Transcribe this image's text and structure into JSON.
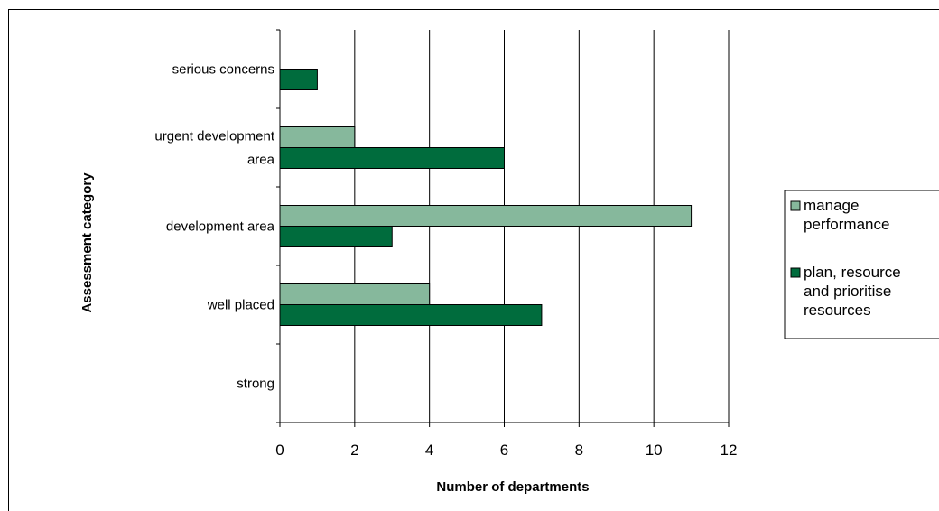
{
  "chart_data": {
    "type": "bar",
    "orientation": "horizontal",
    "categories": [
      "serious concerns",
      "urgent development area",
      "development area",
      "well placed",
      "strong"
    ],
    "category_lines": [
      [
        "serious concerns"
      ],
      [
        "urgent development",
        "area"
      ],
      [
        "development area"
      ],
      [
        "well placed"
      ],
      [
        "strong"
      ]
    ],
    "series": [
      {
        "name": "manage performance",
        "legend_lines": [
          "manage",
          "performance"
        ],
        "color": "#86b89c",
        "values": [
          0,
          2,
          11,
          4,
          0
        ]
      },
      {
        "name": "plan, resource and prioritise resources",
        "legend_lines": [
          "plan, resource",
          "and prioritise",
          "resources"
        ],
        "color": "#006c3d",
        "values": [
          1,
          6,
          3,
          7,
          0
        ]
      }
    ],
    "xlabel": "Number of departments",
    "ylabel": "Assessment category",
    "xlim": [
      0,
      12
    ],
    "xticks": [
      "0",
      "2",
      "4",
      "6",
      "8",
      "10",
      "12"
    ],
    "grid": "vertical",
    "legend_position": "right"
  }
}
